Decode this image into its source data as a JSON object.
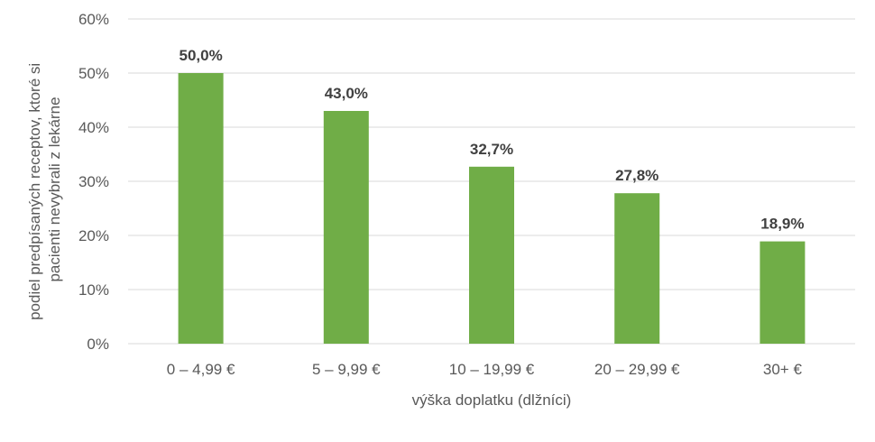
{
  "chart_data": {
    "type": "bar",
    "title": "",
    "xlabel": "výška doplatku (dlžníci)",
    "ylabel_lines": [
      "podiel predpísaných receptov, ktoré si",
      "pacienti nevybrali z lekárne"
    ],
    "categories": [
      "0 – 4,99 €",
      "5 – 9,99 €",
      "10 – 19,99 €",
      "20 – 29,99 €",
      "30+ €"
    ],
    "values": [
      50.0,
      43.0,
      32.7,
      27.8,
      18.9
    ],
    "data_labels": [
      "50,0%",
      "43,0%",
      "32,7%",
      "27,8%",
      "18,9%"
    ],
    "ylim": [
      0,
      60
    ],
    "yticks": [
      0,
      10,
      20,
      30,
      40,
      50,
      60
    ],
    "ytick_labels": [
      "0%",
      "10%",
      "20%",
      "30%",
      "40%",
      "50%",
      "60%"
    ],
    "grid": true,
    "legend": "none",
    "bar_color": "#70ad47"
  }
}
